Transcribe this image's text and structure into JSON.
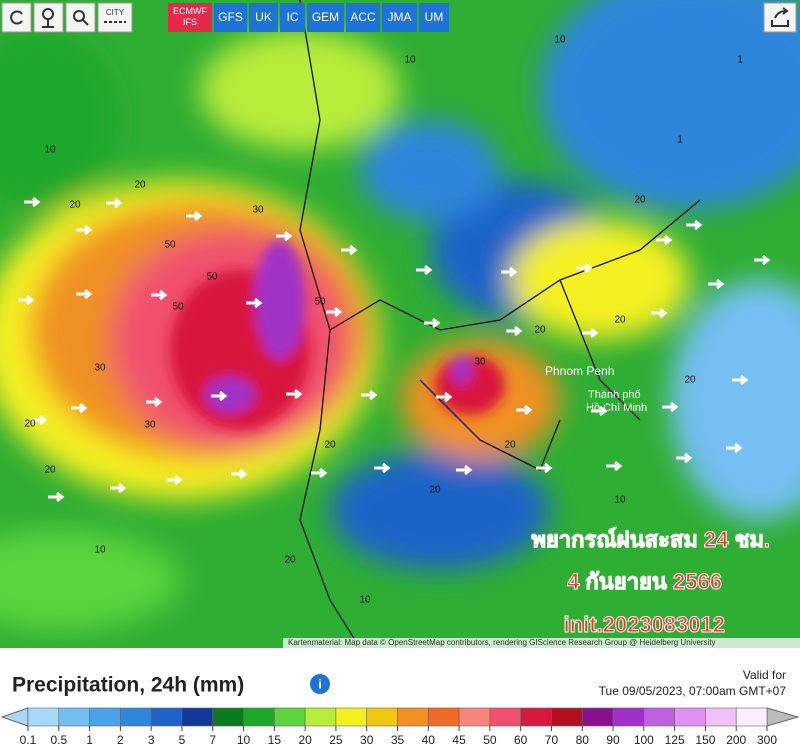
{
  "toolbar": {
    "city": "CITY",
    "models": [
      "ECMWF IFS",
      "GFS",
      "UK",
      "IC",
      "GEM",
      "ACC",
      "JMA",
      "UM"
    ],
    "active_model": 0
  },
  "map": {
    "overlay_lines": [
      "พยากรณ์ฝนสะสม 24 ชม.",
      "4 กันยายน 2566",
      "init.2023083012"
    ],
    "places": [
      "Phnom Penh",
      "Thành phố",
      "Hồ Chí Minh"
    ],
    "contour_labels": [
      "10",
      "10",
      "20",
      "20",
      "30",
      "50",
      "50",
      "30",
      "20",
      "20",
      "10",
      "20",
      "20",
      "30",
      "20",
      "10",
      "20",
      "20",
      "1",
      "1",
      "10",
      "20",
      "30",
      "50",
      "50",
      "20",
      "10",
      "20"
    ],
    "attribution": "Kartenmaterial: Map data © OpenStreetMap contributors, rendering GIScience Research Group @ Heidelberg University"
  },
  "legend": {
    "title": "Precipitation, 24h (mm)",
    "valid_label": "Valid for",
    "valid_time": "Tue 09/05/2023, 07:00am GMT+07",
    "labels": [
      "0.1",
      "0.5",
      "1",
      "2",
      "3",
      "5",
      "7",
      "10",
      "15",
      "20",
      "25",
      "30",
      "35",
      "40",
      "45",
      "50",
      "60",
      "70",
      "80",
      "90",
      "100",
      "125",
      "150",
      "200",
      "300"
    ],
    "colors": [
      "#a8d8f8",
      "#74bff2",
      "#4aa3ea",
      "#2f86dc",
      "#1e63c8",
      "#12379a",
      "#0a7a1e",
      "#1ea82a",
      "#5cd43c",
      "#b8ec3a",
      "#f4f020",
      "#f0c814",
      "#f09020",
      "#f06a24",
      "#f7867a",
      "#f0506e",
      "#d8183c",
      "#b01020",
      "#8a1090",
      "#a030c8",
      "#c060e0",
      "#e090f0",
      "#f0c0f8",
      "#f8f0f8"
    ]
  }
}
